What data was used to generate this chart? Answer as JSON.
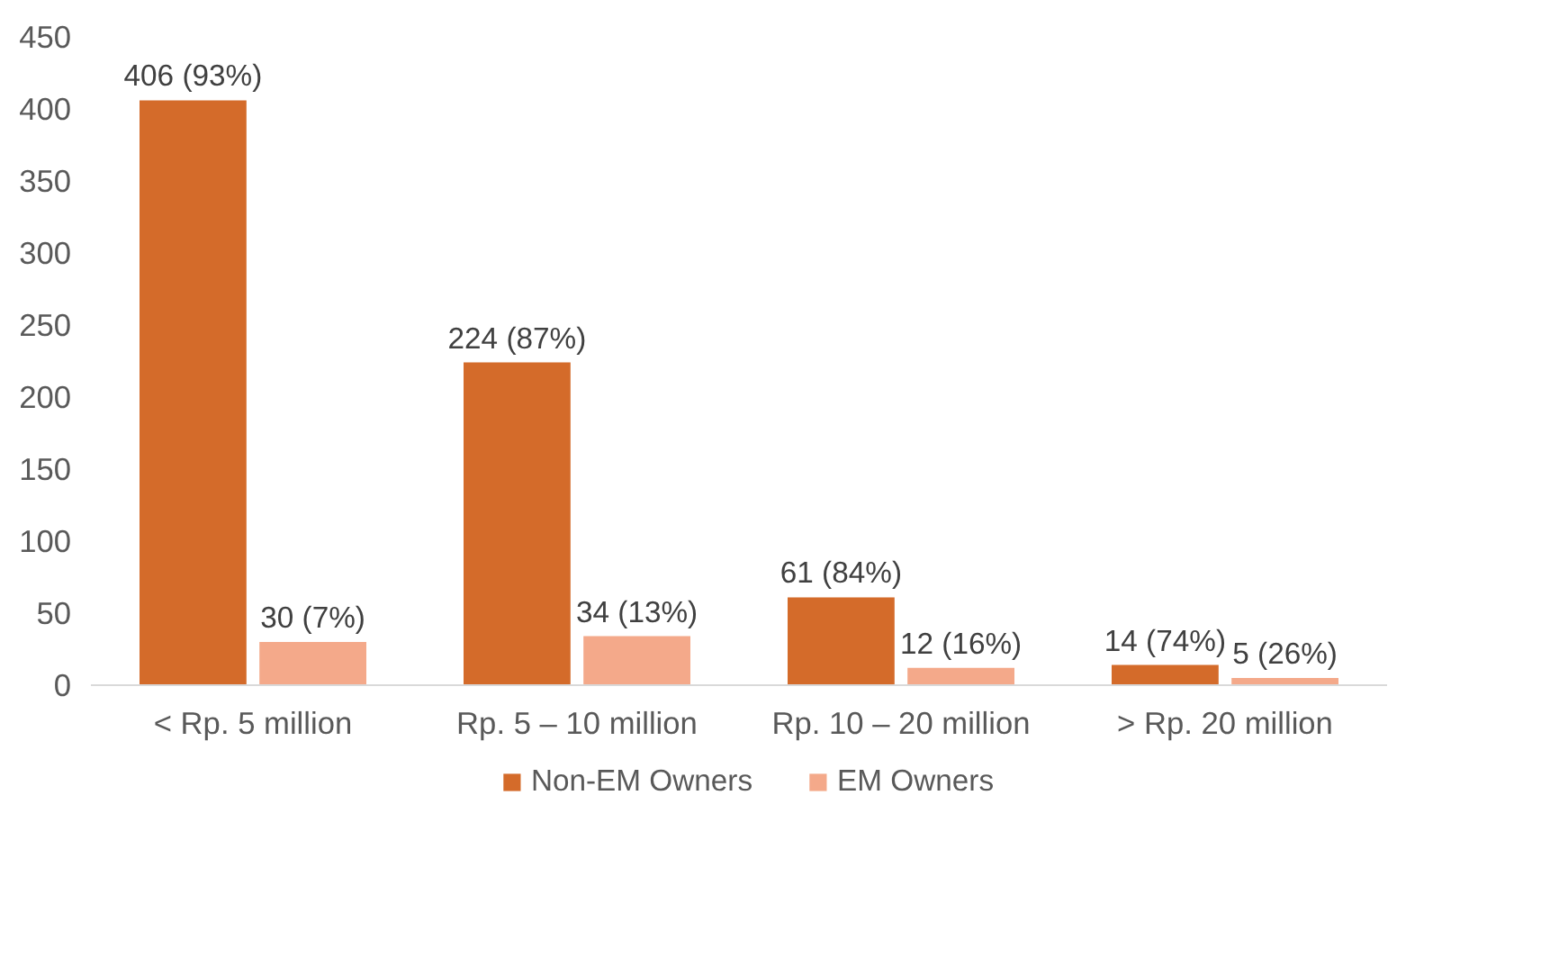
{
  "chart_data": {
    "type": "bar",
    "categories": [
      "< Rp. 5 million",
      "Rp. 5 – 10 million",
      "Rp. 10 – 20 million",
      "> Rp. 20 million"
    ],
    "series": [
      {
        "name": "Non-EM Owners",
        "color": "#d46b2a",
        "values": [
          406,
          224,
          61,
          14
        ],
        "value_labels": [
          "406 (93%)",
          "224 (87%)",
          "61 (84%)",
          "14 (74%)"
        ]
      },
      {
        "name": "EM Owners",
        "color": "#f4a98a",
        "values": [
          30,
          34,
          12,
          5
        ],
        "value_labels": [
          "30 (7%)",
          "34 (13%)",
          "12 (16%)",
          "5 (26%)"
        ]
      }
    ],
    "ylim": [
      0,
      450
    ],
    "yticks": [
      0,
      50,
      100,
      150,
      200,
      250,
      300,
      350,
      400,
      450
    ],
    "grid": false,
    "legend": "bottom"
  }
}
